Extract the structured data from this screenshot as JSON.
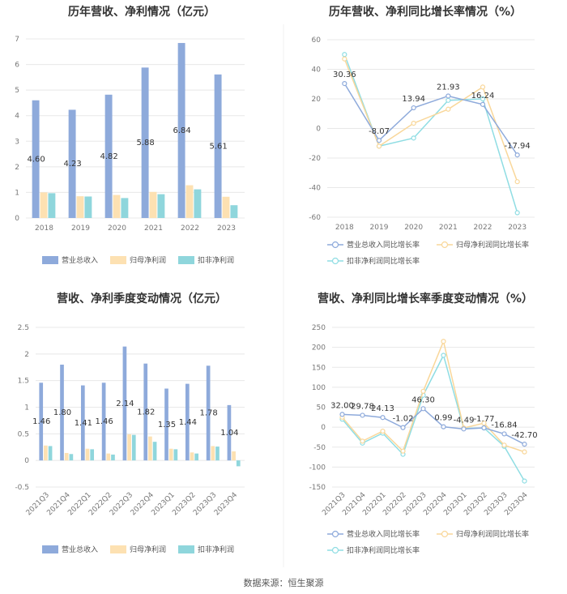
{
  "colors": {
    "revenue": "#8eaadb",
    "net": "#fde1b2",
    "deduct": "#8fd6dc",
    "line_rev": "#8eaadb",
    "line_net": "#f9d79a",
    "line_ded": "#8fdde3"
  },
  "footer": "数据来源：恒生聚源",
  "chart_data": [
    {
      "type": "bar",
      "title": "历年营收、净利情况（亿元）",
      "categories": [
        "2018",
        "2019",
        "2020",
        "2021",
        "2022",
        "2023"
      ],
      "ylim": [
        0,
        7
      ],
      "yticks": [
        "0",
        "1",
        "2",
        "3",
        "4",
        "5",
        "6",
        "7"
      ],
      "series": [
        {
          "name": "营业总收入",
          "values": [
            4.6,
            4.23,
            4.82,
            5.88,
            6.84,
            5.61
          ],
          "labels": [
            "4.60",
            "4.23",
            "4.82",
            "5.88",
            "6.84",
            "5.61"
          ]
        },
        {
          "name": "归母净利润",
          "values": [
            1.0,
            0.85,
            0.9,
            1.02,
            1.28,
            0.83
          ]
        },
        {
          "name": "扣非净利润",
          "values": [
            0.97,
            0.84,
            0.78,
            0.93,
            1.12,
            0.5
          ]
        }
      ]
    },
    {
      "type": "line",
      "title": "历年营收、净利同比增长率情况（%）",
      "categories": [
        "2018",
        "2019",
        "2020",
        "2021",
        "2022",
        "2023"
      ],
      "ylim": [
        -60,
        60
      ],
      "yticks": [
        "-60",
        "-40",
        "-20",
        "0",
        "20",
        "40",
        "60"
      ],
      "series": [
        {
          "name": "营业总收入同比增长率",
          "values": [
            30.36,
            -8.07,
            13.94,
            21.93,
            16.24,
            -17.94
          ],
          "labels": [
            "30.36",
            "-8.07",
            "13.94",
            "21.93",
            "16.24",
            "-17.94"
          ]
        },
        {
          "name": "归母净利润同比增长率",
          "values": [
            47,
            -12,
            3.5,
            13,
            28,
            -36
          ]
        },
        {
          "name": "扣非净利润同比增长率",
          "values": [
            50,
            -12,
            -6.5,
            19,
            20,
            -57
          ]
        }
      ]
    },
    {
      "type": "bar",
      "title": "营收、净利季度变动情况（亿元）",
      "categories": [
        "2021Q3",
        "2021Q4",
        "2022Q1",
        "2022Q2",
        "2022Q3",
        "2022Q4",
        "2023Q1",
        "2023Q2",
        "2023Q3",
        "2023Q4"
      ],
      "ylim": [
        -0.5,
        2.5
      ],
      "yticks": [
        "-0.5",
        "0",
        "0.5",
        "1",
        "1.5",
        "2",
        "2.5"
      ],
      "series": [
        {
          "name": "营业总收入",
          "values": [
            1.46,
            1.8,
            1.41,
            1.46,
            2.14,
            1.82,
            1.35,
            1.44,
            1.78,
            1.04
          ],
          "labels": [
            "1.46",
            "1.80",
            "1.41",
            "1.46",
            "2.14",
            "1.82",
            "1.35",
            "1.44",
            "1.78",
            "1.04"
          ]
        },
        {
          "name": "归母净利润",
          "values": [
            0.28,
            0.14,
            0.22,
            0.13,
            0.49,
            0.45,
            0.22,
            0.15,
            0.27,
            0.17
          ]
        },
        {
          "name": "扣非净利润",
          "values": [
            0.27,
            0.12,
            0.21,
            0.11,
            0.48,
            0.35,
            0.21,
            0.13,
            0.26,
            -0.11
          ]
        }
      ]
    },
    {
      "type": "line",
      "title": "营收、净利同比增长率季度变动情况（%）",
      "categories": [
        "2021Q3",
        "2021Q4",
        "2022Q1",
        "2022Q2",
        "2022Q3",
        "2022Q4",
        "2023Q1",
        "2023Q2",
        "2023Q3",
        "2023Q4"
      ],
      "ylim": [
        -150,
        250
      ],
      "yticks": [
        "-150",
        "-100",
        "-50",
        "0",
        "50",
        "100",
        "150",
        "200",
        "250"
      ],
      "series": [
        {
          "name": "营业总收入同比增长率",
          "values": [
            32.0,
            29.78,
            24.13,
            -1.02,
            46.3,
            0.99,
            -4.49,
            -1.77,
            -16.84,
            -42.7
          ],
          "labels": [
            "32.00",
            "29.78",
            "24.13",
            "-1.02",
            "46.30",
            "0.99",
            "-4.49",
            "-1.77",
            "-16.84",
            "-42.70"
          ]
        },
        {
          "name": "归母净利润同比增长率",
          "values": [
            25,
            -35,
            -10,
            -60,
            90,
            215,
            -2,
            10,
            -45,
            -62
          ]
        },
        {
          "name": "扣非净利润同比增长率",
          "values": [
            20,
            -40,
            -15,
            -68,
            80,
            180,
            -3,
            -2,
            -48,
            -135
          ]
        }
      ]
    }
  ]
}
